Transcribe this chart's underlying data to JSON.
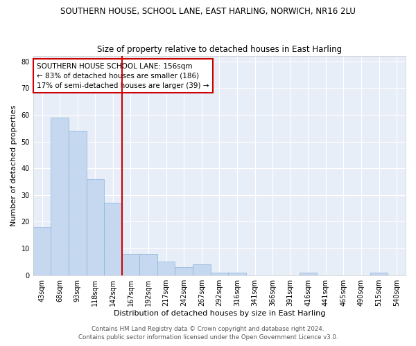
{
  "title1": "SOUTHERN HOUSE, SCHOOL LANE, EAST HARLING, NORWICH, NR16 2LU",
  "title2": "Size of property relative to detached houses in East Harling",
  "xlabel": "Distribution of detached houses by size in East Harling",
  "ylabel": "Number of detached properties",
  "categories": [
    "43sqm",
    "68sqm",
    "93sqm",
    "118sqm",
    "142sqm",
    "167sqm",
    "192sqm",
    "217sqm",
    "242sqm",
    "267sqm",
    "292sqm",
    "316sqm",
    "341sqm",
    "366sqm",
    "391sqm",
    "416sqm",
    "441sqm",
    "465sqm",
    "490sqm",
    "515sqm",
    "540sqm"
  ],
  "values": [
    18,
    59,
    54,
    36,
    27,
    8,
    8,
    5,
    3,
    4,
    1,
    1,
    0,
    0,
    0,
    1,
    0,
    0,
    0,
    1,
    0
  ],
  "bar_color": "#c5d8f0",
  "bar_edge_color": "#88b4d8",
  "bar_width": 1.0,
  "red_line_x": 4.5,
  "annotation_line1": "SOUTHERN HOUSE SCHOOL LANE: 156sqm",
  "annotation_line2": "← 83% of detached houses are smaller (186)",
  "annotation_line3": "17% of semi-detached houses are larger (39) →",
  "annotation_box_color": "white",
  "annotation_box_edge_color": "#cc0000",
  "ylim": [
    0,
    82
  ],
  "yticks": [
    0,
    10,
    20,
    30,
    40,
    50,
    60,
    70,
    80
  ],
  "footer1": "Contains HM Land Registry data © Crown copyright and database right 2024.",
  "footer2": "Contains public sector information licensed under the Open Government Licence v3.0.",
  "bg_color": "#e8eef8",
  "grid_color": "white",
  "title1_fontsize": 8.5,
  "title2_fontsize": 8.5,
  "axis_label_fontsize": 8,
  "tick_fontsize": 7,
  "annotation_fontsize": 7.5,
  "footer_fontsize": 6.2
}
